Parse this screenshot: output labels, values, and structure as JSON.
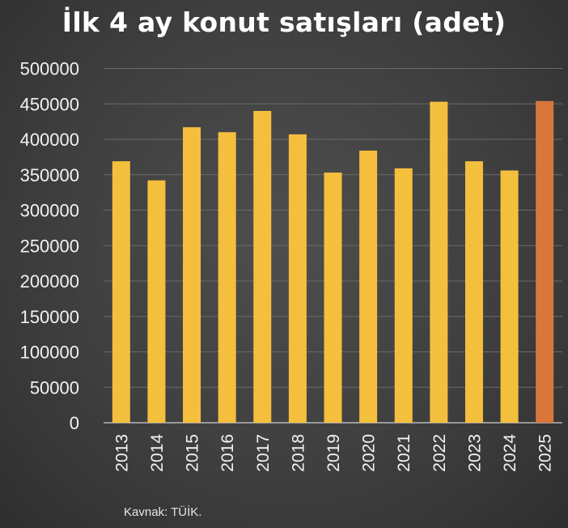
{
  "colors": {
    "bar": "#f5bf3e",
    "highlight": "#d9763a",
    "gridline": "#6a6a6a",
    "axis": "#d0d0d0",
    "text": "#f2f2f2"
  },
  "chart_data": {
    "type": "bar",
    "title": "İlk 4 ay konut satışları (adet)",
    "xlabel": "",
    "ylabel": "",
    "categories": [
      "2013",
      "2014",
      "2015",
      "2016",
      "2017",
      "2018",
      "2019",
      "2020",
      "2021",
      "2022",
      "2023",
      "2024",
      "2025"
    ],
    "values": [
      369000,
      342000,
      417000,
      410000,
      440000,
      407000,
      353000,
      384000,
      359000,
      453000,
      369000,
      356000,
      454000
    ],
    "highlight_category": "2025",
    "ylim": [
      0,
      500000
    ],
    "yticks": [
      0,
      50000,
      100000,
      150000,
      200000,
      250000,
      300000,
      350000,
      400000,
      450000,
      500000
    ],
    "grid": true,
    "legend": "none"
  },
  "source_note": "Kavnak: TÜİK."
}
